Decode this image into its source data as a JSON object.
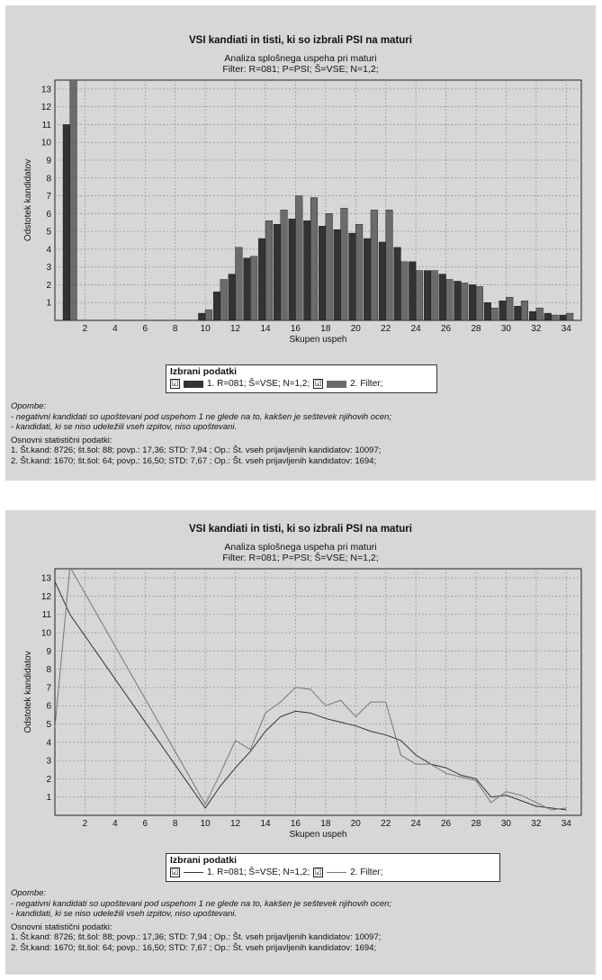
{
  "panels": [
    {
      "title": "VSI kandiati in tisti, ki so izbrali PSI na maturi",
      "subtitle1": "Analiza splošnega uspeha pri maturi",
      "subtitle2": "Filter: R=081; P=PSI; Š=VSE; N=1,2;",
      "legend": {
        "title": "Izbrani podatki",
        "check": "☑",
        "item1": "1. R=081; Š=VSE; N=1,2;",
        "item2": "2. Filter;"
      },
      "notes": {
        "heading": "Opombe:",
        "line1": "- negativni kandidati so upoštevani pod uspehom 1 ne glede na to, kakšen je seštevek njihovih ocen;",
        "line2": "- kandidati, ki se niso udeležili vseh izpitov, niso upoštevani.",
        "stats_heading": "Osnovni statistični podatki:",
        "stat1": "1. Št.kand: 8726; št.šol: 88; povp.: 17,36; STD: 7,94 ; Op.: Št. vseh prijavljenih kandidatov: 10097;",
        "stat2": "2. Št.kand: 1670; št.šol: 64; povp.: 16,50; STD: 7,67 ; Op.: Št. vseh prijavljenih kandidatov: 1694;"
      }
    },
    {
      "title": "VSI kandiati in tisti, ki so izbrali PSI na maturi",
      "subtitle1": "Analiza splošnega uspeha pri maturi",
      "subtitle2": "Filter: R=081; P=PSI; Š=VSE; N=1,2;",
      "legend": {
        "title": "Izbrani podatki",
        "check": "☑",
        "item1": "1. R=081; Š=VSE; N=1,2;",
        "item2": "2. Filter;"
      },
      "notes": {
        "heading": "Opombe:",
        "line1": "- negativni kandidati so upoštevani pod uspehom 1 ne glede na to, kakšen je seštevek njihovih ocen;",
        "line2": "- kandidati, ki se niso udeležili vseh izpitov, niso upoštevani.",
        "stats_heading": "Osnovni statistični podatki:",
        "stat1": "1. Št.kand: 8726; št.šol: 88; povp.: 17,36; STD: 7,94 ; Op.: Št. vseh prijavljenih kandidatov: 10097;",
        "stat2": "2. Št.kand: 1670; št.šol: 64; povp.: 16,50; STD: 7,67 ; Op.: Št. vseh prijavljenih kandidatov: 1694;"
      }
    }
  ],
  "colors": {
    "series1": "#333333",
    "series2": "#6b6b6b",
    "background": "#d7d7d7",
    "grid": "#999999"
  },
  "chart_data": [
    {
      "type": "bar",
      "title": "VSI kandiati in tisti, ki so izbrali PSI na maturi",
      "xlabel": "Skupen uspeh",
      "ylabel": "Odstotek kandidatov",
      "x_ticks": [
        2,
        4,
        6,
        8,
        10,
        12,
        14,
        16,
        18,
        20,
        22,
        24,
        26,
        28,
        30,
        32,
        34
      ],
      "y_ticks": [
        1,
        2,
        3,
        4,
        5,
        6,
        7,
        8,
        9,
        10,
        11,
        12,
        13
      ],
      "xlim": [
        0,
        35
      ],
      "ylim": [
        0,
        13.5
      ],
      "grid": true,
      "legend_position": "bottom",
      "x": [
        1,
        2,
        3,
        4,
        5,
        6,
        7,
        8,
        9,
        10,
        11,
        12,
        13,
        14,
        15,
        16,
        17,
        18,
        19,
        20,
        21,
        22,
        23,
        24,
        25,
        26,
        27,
        28,
        29,
        30,
        31,
        32,
        33,
        34
      ],
      "series": [
        {
          "name": "1. R=081; Š=VSE; N=1,2;",
          "values": [
            11.0,
            0,
            0,
            0,
            0,
            0,
            0,
            0,
            0,
            0.4,
            1.6,
            2.6,
            3.5,
            4.6,
            5.4,
            5.7,
            5.6,
            5.3,
            5.1,
            4.9,
            4.6,
            4.4,
            4.1,
            3.3,
            2.8,
            2.6,
            2.2,
            2.0,
            1.0,
            1.1,
            0.8,
            0.5,
            0.4,
            0.3
          ]
        },
        {
          "name": "2. Filter;",
          "values": [
            13.6,
            0,
            0,
            0,
            0,
            0,
            0,
            0,
            0,
            0.6,
            2.3,
            4.1,
            3.6,
            5.6,
            6.2,
            7.0,
            6.9,
            6.0,
            6.3,
            5.4,
            6.2,
            6.2,
            3.3,
            2.8,
            2.8,
            2.3,
            2.1,
            1.9,
            0.7,
            1.3,
            1.1,
            0.7,
            0.3,
            0.4
          ]
        }
      ]
    },
    {
      "type": "line",
      "title": "VSI kandiati in tisti, ki so izbrali PSI na maturi",
      "xlabel": "Skupen uspeh",
      "ylabel": "Odstotek kandidatov",
      "x_ticks": [
        2,
        4,
        6,
        8,
        10,
        12,
        14,
        16,
        18,
        20,
        22,
        24,
        26,
        28,
        30,
        32,
        34
      ],
      "y_ticks": [
        1,
        2,
        3,
        4,
        5,
        6,
        7,
        8,
        9,
        10,
        11,
        12,
        13
      ],
      "xlim": [
        0,
        35
      ],
      "ylim": [
        0,
        13.5
      ],
      "grid": true,
      "legend_position": "bottom",
      "series": [
        {
          "name": "1. R=081; Š=VSE; N=1,2;",
          "x": [
            0,
            1,
            10,
            11,
            12,
            13,
            14,
            15,
            16,
            17,
            18,
            19,
            20,
            21,
            22,
            23,
            24,
            25,
            26,
            27,
            28,
            29,
            30,
            31,
            32,
            33,
            34
          ],
          "values": [
            12.8,
            11.0,
            0.4,
            1.6,
            2.6,
            3.5,
            4.6,
            5.4,
            5.7,
            5.6,
            5.3,
            5.1,
            4.9,
            4.6,
            4.4,
            4.1,
            3.3,
            2.8,
            2.6,
            2.2,
            2.0,
            1.0,
            1.1,
            0.8,
            0.5,
            0.4,
            0.3
          ]
        },
        {
          "name": "2. Filter;",
          "x": [
            0,
            1,
            10,
            11,
            12,
            13,
            14,
            15,
            16,
            17,
            18,
            19,
            20,
            21,
            22,
            23,
            24,
            25,
            26,
            27,
            28,
            29,
            30,
            31,
            32,
            33,
            34
          ],
          "values": [
            4.8,
            13.6,
            0.6,
            2.3,
            4.1,
            3.6,
            5.6,
            6.2,
            7.0,
            6.9,
            6.0,
            6.3,
            5.4,
            6.2,
            6.2,
            3.3,
            2.8,
            2.8,
            2.3,
            2.1,
            1.9,
            0.7,
            1.3,
            1.1,
            0.7,
            0.3,
            0.4
          ]
        }
      ]
    }
  ]
}
